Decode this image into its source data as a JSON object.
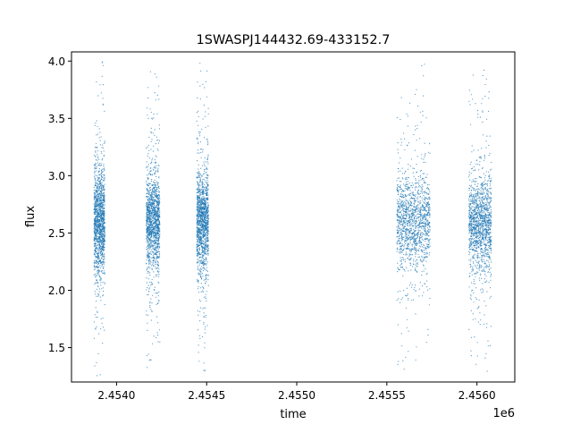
{
  "chart_data": {
    "type": "scatter",
    "title": "1SWASPJ144432.69-433152.7",
    "xlabel": "time",
    "ylabel": "flux",
    "x_offset_label": "1e6",
    "xlim": [
      2453750,
      2456210
    ],
    "ylim": [
      1.2,
      4.08
    ],
    "x_ticks": [
      2454000,
      2454500,
      2455000,
      2455500,
      2456000
    ],
    "x_tick_labels": [
      "2.4540",
      "2.4545",
      "2.4550",
      "2.4555",
      "2.4560"
    ],
    "y_ticks": [
      1.5,
      2.0,
      2.5,
      3.0,
      3.5,
      4.0
    ],
    "y_tick_labels": [
      "1.5",
      "2.0",
      "2.5",
      "3.0",
      "3.5",
      "4.0"
    ],
    "grid": false,
    "marker_color": "#1f77b4",
    "series": [
      {
        "clusters": [
          {
            "x_start": 2453875,
            "x_end": 2453935,
            "y_center": 2.6,
            "y_core_spread": 0.22,
            "y_min": 1.22,
            "y_max": 4.0
          },
          {
            "x_start": 2454165,
            "x_end": 2454240,
            "y_center": 2.6,
            "y_core_spread": 0.2,
            "y_min": 1.28,
            "y_max": 3.92
          },
          {
            "x_start": 2454445,
            "x_end": 2454510,
            "y_center": 2.6,
            "y_core_spread": 0.2,
            "y_min": 1.3,
            "y_max": 3.98
          },
          {
            "x_start": 2455555,
            "x_end": 2455740,
            "y_center": 2.6,
            "y_core_spread": 0.2,
            "y_min": 1.27,
            "y_max": 3.98
          },
          {
            "x_start": 2455955,
            "x_end": 2456080,
            "y_center": 2.6,
            "y_core_spread": 0.2,
            "y_min": 1.22,
            "y_max": 3.92
          }
        ]
      }
    ]
  }
}
